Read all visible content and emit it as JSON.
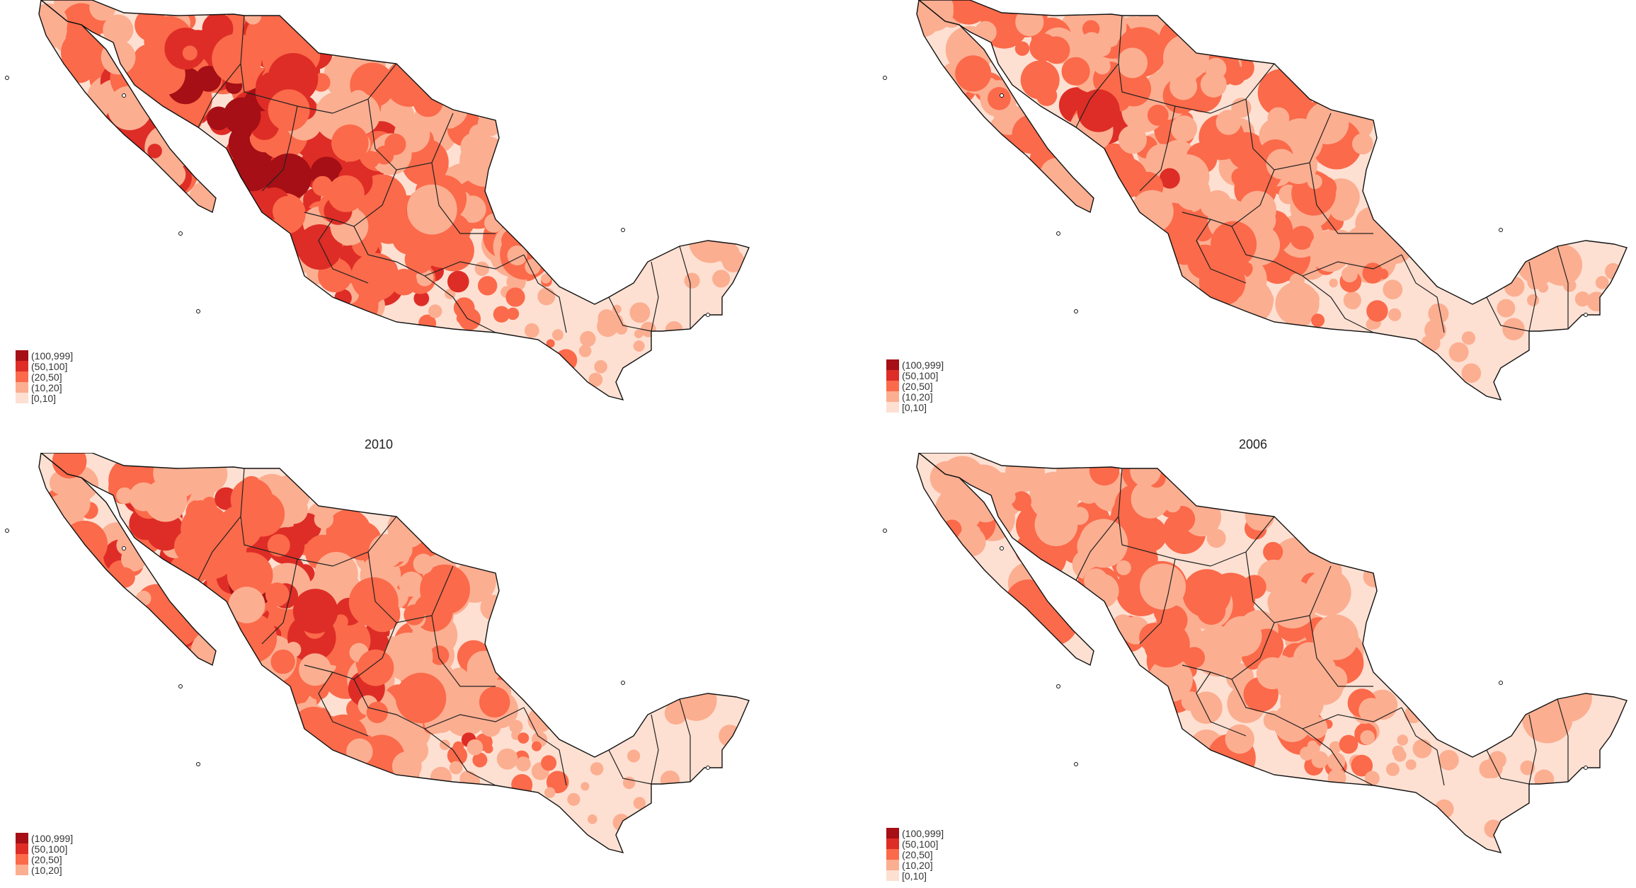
{
  "captions": {
    "middle_left": "2010",
    "middle_right": "2006"
  },
  "legend_classes": [
    {
      "label": "(100,999]",
      "color": "#a50f15"
    },
    {
      "label": "(50,100]",
      "color": "#de2d26"
    },
    {
      "label": "(20,50]",
      "color": "#fb6a4a"
    },
    {
      "label": "(10,20]",
      "color": "#fcae91"
    },
    {
      "label": "[0,10]",
      "color": "#fde0d2"
    }
  ],
  "legend_bl_classes": [
    {
      "label": "(100,999]",
      "color": "#a50f15"
    },
    {
      "label": "(50,100]",
      "color": "#de2d26"
    },
    {
      "label": "(20,50]",
      "color": "#fb6a4a"
    },
    {
      "label": "(10,20]",
      "color": "#fcae91"
    }
  ],
  "maps": [
    {
      "id": "top-left",
      "intensity": 0.72
    },
    {
      "id": "top-right",
      "intensity": 0.42
    },
    {
      "id": "bottom-left",
      "intensity": 0.66
    },
    {
      "id": "bottom-right",
      "intensity": 0.3
    }
  ]
}
